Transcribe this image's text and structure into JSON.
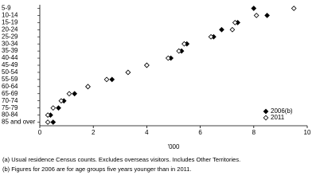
{
  "chart_data": {
    "type": "dot",
    "categories": [
      "5-9",
      "10-14",
      "15-19",
      "20-24",
      "25-29",
      "30-34",
      "35-39",
      "40-44",
      "45-49",
      "50-54",
      "55-59",
      "60-64",
      "65-69",
      "70-74",
      "75-79",
      "80-84",
      "85 and over"
    ],
    "series": [
      {
        "name": "2006(b)",
        "color": "#000000",
        "fill": "filled",
        "values": [
          8.0,
          8.5,
          7.4,
          6.8,
          6.5,
          5.5,
          5.3,
          4.9,
          4.0,
          3.3,
          2.7,
          1.8,
          1.3,
          0.9,
          0.7,
          0.4,
          0.5
        ]
      },
      {
        "name": "2011",
        "color": "#000000",
        "fill": "open",
        "values": [
          9.5,
          8.1,
          7.3,
          7.2,
          6.4,
          5.4,
          5.2,
          4.8,
          4.0,
          3.3,
          2.5,
          1.8,
          1.1,
          0.8,
          0.5,
          0.3,
          0.3
        ]
      }
    ],
    "xlim": [
      0,
      10
    ],
    "xticks": [
      0,
      2,
      4,
      6,
      8,
      10
    ],
    "x_label": "'000",
    "legend": "bottom-right",
    "footnotes": [
      "(a) Usual residence Census counts. Excludes overseas visitors. Includes Other Territories.",
      "(b) Figures for 2006 are for age groups five years younger than in 2011."
    ]
  }
}
